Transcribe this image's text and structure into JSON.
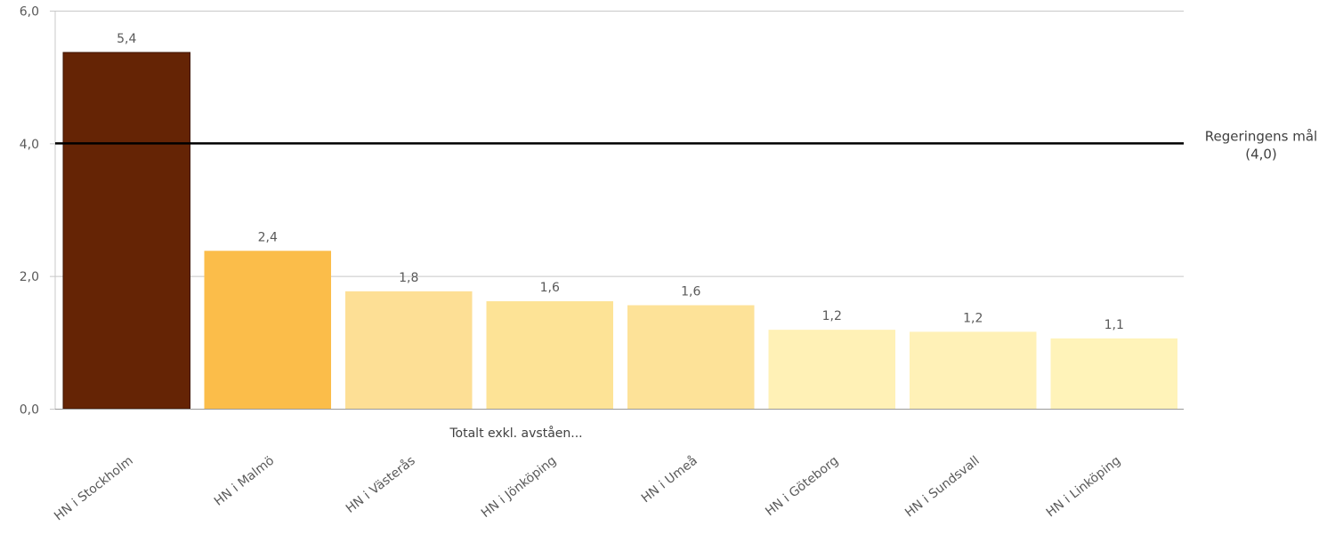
{
  "chart_data": {
    "type": "bar",
    "categories": [
      "HN i Stockholm",
      "HN i Malmö",
      "HN i Västerås",
      "HN i Jönköping",
      "HN i Umeå",
      "HN i Göteborg",
      "HN i Sundsvall",
      "HN i Linköping"
    ],
    "values": [
      5.37,
      2.38,
      1.77,
      1.62,
      1.56,
      1.19,
      1.16,
      1.06
    ],
    "value_labels": [
      "5,4",
      "2,4",
      "1,8",
      "1,6",
      "1,6",
      "1,2",
      "1,2",
      "1,1"
    ],
    "bar_colors": [
      "#652405",
      "#fbbd4a",
      "#fddf95",
      "#fde396",
      "#fde298",
      "#fff1b6",
      "#fff1b7",
      "#fff3b9"
    ],
    "ylim": [
      0,
      6
    ],
    "yticks": [
      0,
      2,
      4,
      6
    ],
    "ytick_labels": [
      "0,0",
      "2,0",
      "4,0",
      "6,0"
    ],
    "grid": true,
    "xlabel": "Totalt exkl. avståen...",
    "reference_line": {
      "value": 4,
      "label_line1": "Regeringens mål",
      "label_line2": "(4,0)",
      "color": "#000000"
    },
    "colors": {
      "grid": "#c8c8c8",
      "axis_text": "#595959",
      "value_label": "#595959"
    }
  }
}
